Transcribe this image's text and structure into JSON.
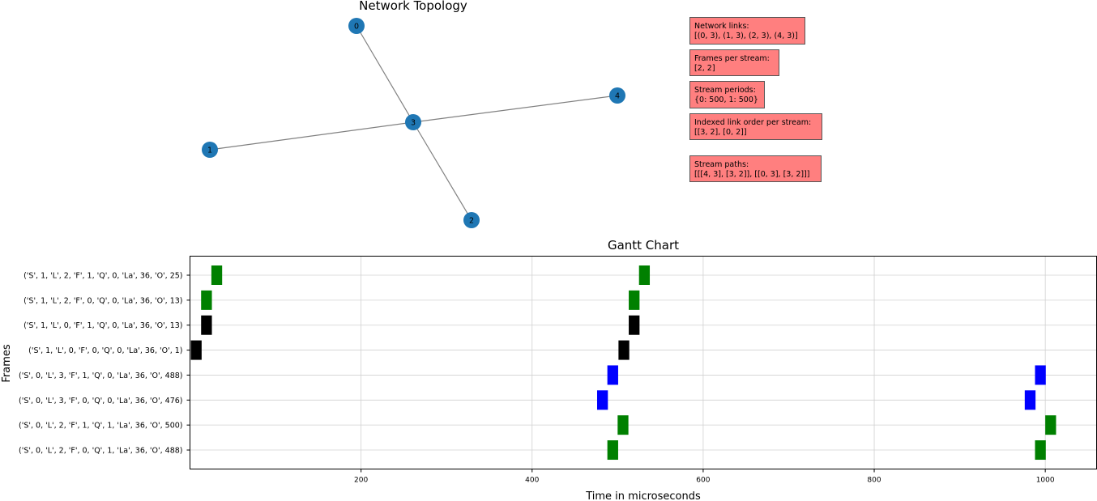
{
  "topology": {
    "title": "Network  Topology",
    "nodes": [
      {
        "id": "0",
        "label": "0"
      },
      {
        "id": "1",
        "label": "1"
      },
      {
        "id": "2",
        "label": "2"
      },
      {
        "id": "3",
        "label": "3"
      },
      {
        "id": "4",
        "label": "4"
      }
    ],
    "edges": [
      [
        "0",
        "3"
      ],
      [
        "1",
        "3"
      ],
      [
        "2",
        "3"
      ],
      [
        "4",
        "3"
      ]
    ],
    "node_color": "#1f77b4",
    "edge_color": "#808080"
  },
  "info_boxes": [
    {
      "lines": [
        "Network links:",
        "[(0, 3), (1, 3), (2, 3), (4, 3)]"
      ]
    },
    {
      "lines": [
        "Frames per stream:",
        "[2, 2]"
      ]
    },
    {
      "lines": [
        "Stream periods:",
        "{0: 500, 1: 500}"
      ]
    },
    {
      "lines": [
        "Indexed link order per stream:",
        " [[3, 2], [0, 2]]"
      ]
    },
    {
      "lines": [
        "Stream paths:",
        " [[[4, 3], [3, 2]], [[0, 3], [3, 2]]]"
      ]
    }
  ],
  "info_box_color": "#ff7f7f",
  "chart_data": {
    "type": "gantt",
    "title": "Gantt Chart",
    "xlabel": "Time in microseconds",
    "ylabel": "Frames",
    "xlim": [
      0,
      1060
    ],
    "xticks": [
      200,
      400,
      600,
      800,
      1000
    ],
    "grid": true,
    "frames": [
      {
        "label": "('S', 1, 'L', 2, 'F', 1, 'Q', 0, 'La', 36, 'O', 25)",
        "color": "#008000",
        "bars": [
          [
            25,
            36
          ],
          [
            525,
            36
          ]
        ]
      },
      {
        "label": "('S', 1, 'L', 2, 'F', 0, 'Q', 0, 'La', 36, 'O', 13)",
        "color": "#008000",
        "bars": [
          [
            13,
            36
          ],
          [
            513,
            36
          ]
        ]
      },
      {
        "label": "('S', 1, 'L', 0, 'F', 1, 'Q', 0, 'La', 36, 'O', 13)",
        "color": "#000000",
        "bars": [
          [
            13,
            36
          ],
          [
            513,
            36
          ]
        ]
      },
      {
        "label": "('S', 1, 'L', 0, 'F', 0, 'Q', 0, 'La', 36, 'O', 1)",
        "color": "#000000",
        "bars": [
          [
            1,
            36
          ],
          [
            501,
            36
          ]
        ]
      },
      {
        "label": "('S', 0, 'L', 3, 'F', 1, 'Q', 0, 'La', 36, 'O', 488)",
        "color": "#0000ff",
        "bars": [
          [
            488,
            36
          ],
          [
            988,
            36
          ]
        ]
      },
      {
        "label": "('S', 0, 'L', 3, 'F', 0, 'Q', 0, 'La', 36, 'O', 476)",
        "color": "#0000ff",
        "bars": [
          [
            476,
            36
          ],
          [
            976,
            36
          ]
        ]
      },
      {
        "label": "('S', 0, 'L', 2, 'F', 1, 'Q', 1, 'La', 36, 'O', 500)",
        "color": "#008000",
        "bars": [
          [
            500,
            36
          ],
          [
            1000,
            36
          ]
        ]
      },
      {
        "label": "('S', 0, 'L', 2, 'F', 0, 'Q', 1, 'La', 36, 'O', 488)",
        "color": "#008000",
        "bars": [
          [
            488,
            36
          ],
          [
            988,
            36
          ]
        ]
      }
    ]
  }
}
